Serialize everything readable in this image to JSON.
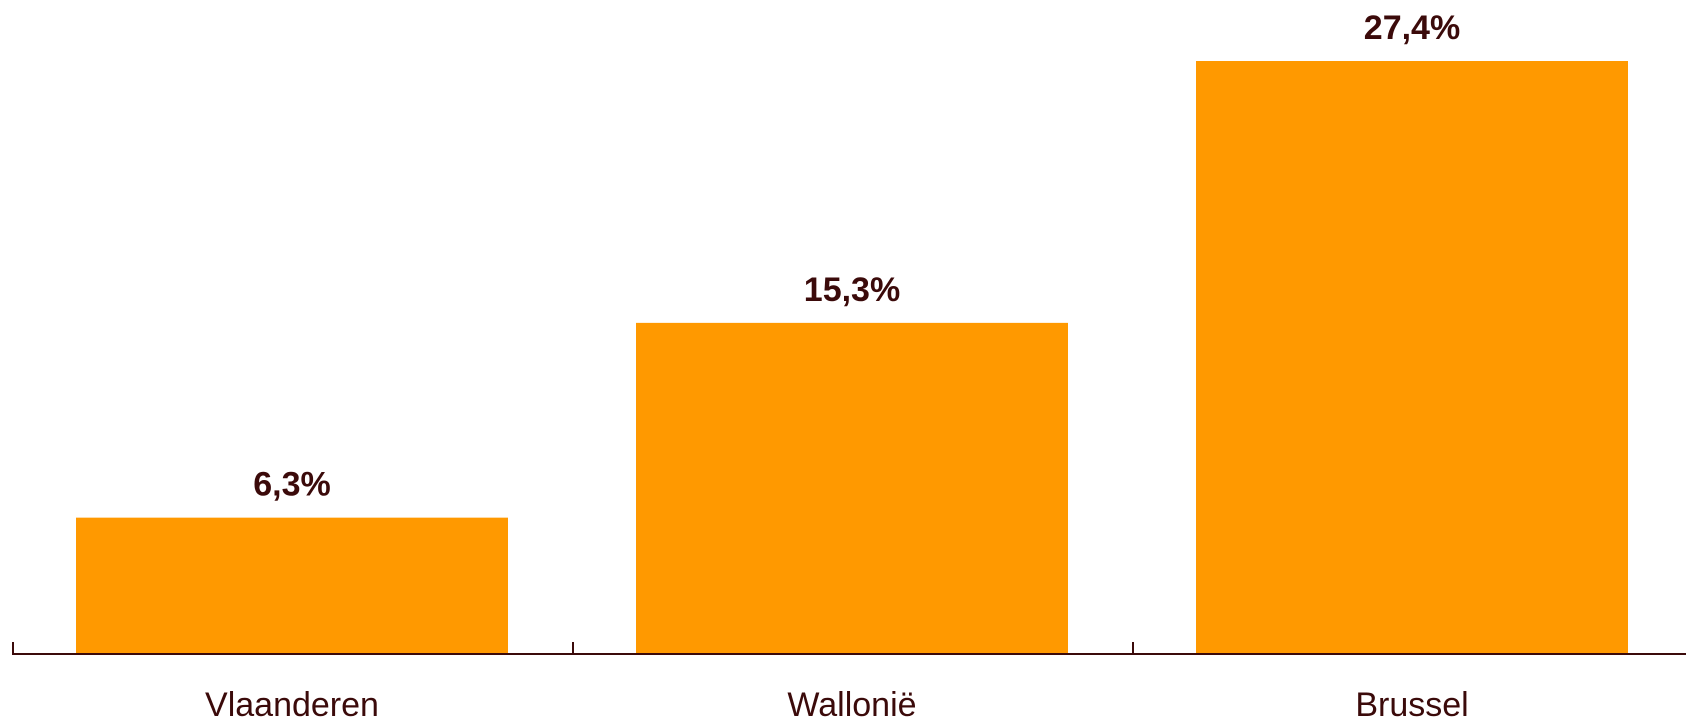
{
  "chart_data": {
    "type": "bar",
    "categories": [
      "Vlaanderen",
      "Wallonië",
      "Brussel"
    ],
    "values": [
      6.3,
      15.3,
      27.4
    ],
    "value_labels": [
      "6,3%",
      "15,3%",
      "27,4%"
    ],
    "unit": "%",
    "ylim": [
      0,
      30
    ],
    "grid": false,
    "legend": "none",
    "colors": {
      "bar": "#FF9900",
      "axis": "#3B0A0A",
      "value_text": "#3B0A0A",
      "category_text": "#3B0A0A"
    }
  }
}
